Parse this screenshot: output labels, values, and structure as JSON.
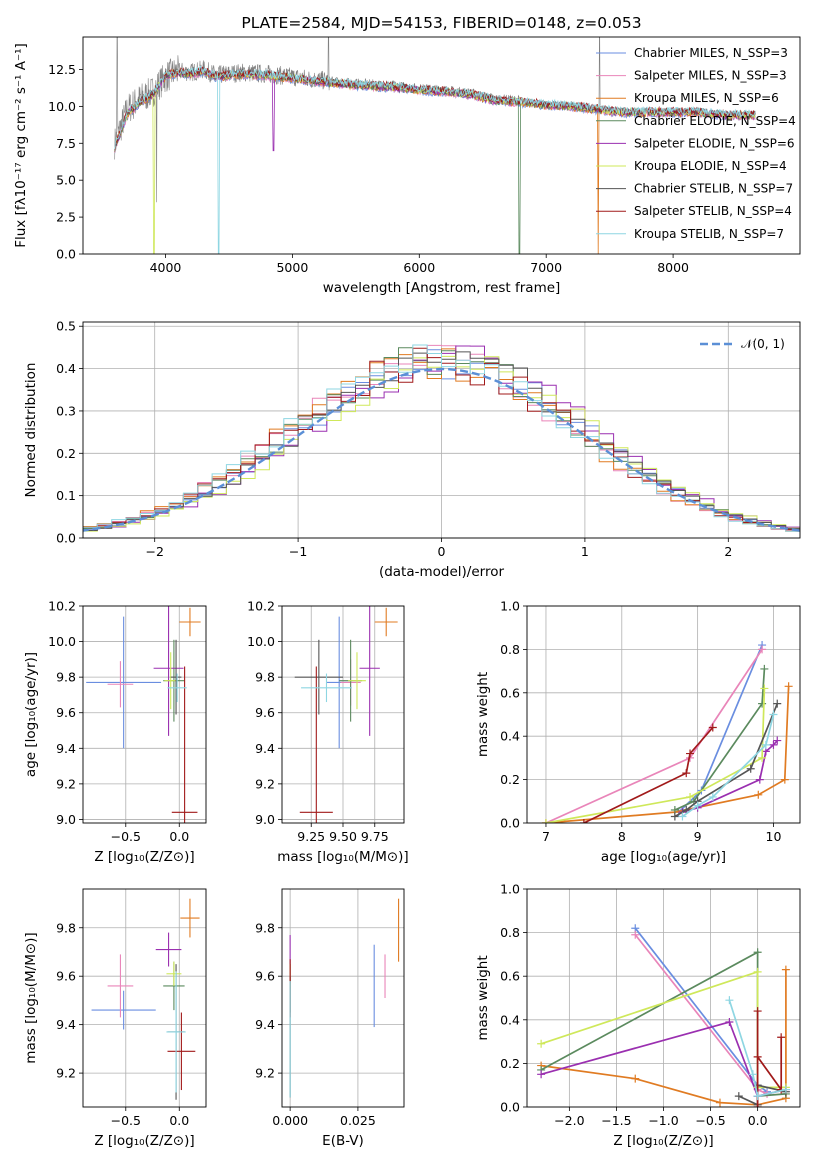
{
  "colors": [
    "#6a8ee0",
    "#e985b9",
    "#e07b22",
    "#5b8a5e",
    "#9a2fb0",
    "#cfe85a",
    "#555555",
    "#a11a1a",
    "#8ed6e2"
  ],
  "chart_data": [
    {
      "id": "spectrum",
      "type": "line",
      "title": "PLATE=2584, MJD=54153, FIBERID=0148, z=0.053",
      "xlabel": "wavelength [Angstrom, rest frame]",
      "ylabel": "Flux [fλ10⁻¹⁷ erg cm⁻² s⁻¹ A⁻¹]",
      "xlim": [
        3350,
        9000
      ],
      "ylim": [
        0,
        14.7
      ],
      "xticks": [
        "4000",
        "5000",
        "6000",
        "7000",
        "8000"
      ],
      "yticks": [
        "0.0",
        "2.5",
        "5.0",
        "7.5",
        "10.0",
        "12.5"
      ],
      "legend": [
        "Chabrier MILES, N_SSP=3",
        "Salpeter MILES, N_SSP=3",
        "Kroupa MILES, N_SSP=6",
        "Chabrier ELODIE, N_SSP=4",
        "Salpeter ELODIE, N_SSP=6",
        "Kroupa ELODIE, N_SSP=4",
        "Chabrier STELIB, N_SSP=7",
        "Salpeter STELIB, N_SSP=4",
        "Kroupa STELIB, N_SSP=7"
      ],
      "data_series": {
        "name": "data",
        "x": [
          3600,
          3700,
          3800,
          3900,
          4000,
          4100,
          4200,
          4300,
          4400,
          4600,
          4800,
          5000,
          5200,
          5400,
          5600,
          5800,
          6000,
          6200,
          6400,
          6600,
          6800,
          7000,
          7200,
          7400,
          7600,
          7800,
          8000,
          8200,
          8400,
          8600
        ],
        "y": [
          7.5,
          9.8,
          10.5,
          11.0,
          12.0,
          12.4,
          12.3,
          12.5,
          12.1,
          12.3,
          12.2,
          12.0,
          11.8,
          11.6,
          11.5,
          11.4,
          11.2,
          11.1,
          10.9,
          10.5,
          10.4,
          10.2,
          10.1,
          9.9,
          9.7,
          9.7,
          9.7,
          9.7,
          9.5,
          9.5
        ]
      },
      "model_series_x": [
        3600,
        3700,
        3800,
        3900,
        4000,
        4100,
        4200,
        4300,
        4400,
        4600,
        4800,
        5000,
        5200,
        5400,
        5600,
        5800,
        6000,
        6200,
        6400,
        6600,
        6800,
        7000,
        7200,
        7400,
        7600,
        7800,
        8000,
        8200,
        8400,
        8600
      ],
      "model_series_y": [
        7.2,
        9.5,
        10.3,
        10.8,
        12.1,
        12.3,
        12.2,
        12.4,
        12.0,
        12.2,
        12.1,
        11.9,
        11.7,
        11.5,
        11.4,
        11.3,
        11.1,
        11.0,
        10.8,
        10.4,
        10.3,
        10.1,
        10.0,
        9.8,
        9.6,
        9.6,
        9.6,
        9.6,
        9.4,
        9.4
      ]
    },
    {
      "id": "residuals",
      "type": "line",
      "xlabel": "(data-model)/error",
      "ylabel": "Normed distribution",
      "xlim": [
        -2.5,
        2.5
      ],
      "ylim": [
        0,
        0.51
      ],
      "xticks": [
        "−2",
        "−1",
        "0",
        "1",
        "2"
      ],
      "yticks": [
        "0.0",
        "0.1",
        "0.2",
        "0.3",
        "0.4",
        "0.5"
      ],
      "legend": [
        "𝒩(0, 1)"
      ]
    },
    {
      "id": "age-vs-z",
      "type": "scatter",
      "xlabel": "Z [log₁₀(Z/Z⊙)]",
      "ylabel": "age  [log₁₀(age/yr)]",
      "xlim": [
        -0.9,
        0.25
      ],
      "ylim": [
        8.98,
        10.2
      ],
      "xticks": [
        "−0.5",
        "0.0"
      ],
      "yticks": [
        "9.0",
        "9.2",
        "9.4",
        "9.6",
        "9.8",
        "10.0",
        "10.2"
      ],
      "points": [
        {
          "x": -0.52,
          "y": 9.77,
          "xerr": 0.35,
          "yerr": 0.37
        },
        {
          "x": -0.55,
          "y": 9.76,
          "xerr": 0.12,
          "yerr": 0.13
        },
        {
          "x": 0.1,
          "y": 10.11,
          "xerr": 0.1,
          "yerr": 0.08
        },
        {
          "x": -0.05,
          "y": 9.78,
          "xerr": 0.1,
          "yerr": 0.23
        },
        {
          "x": -0.1,
          "y": 9.85,
          "xerr": 0.14,
          "yerr": 0.38
        },
        {
          "x": -0.08,
          "y": 9.78,
          "xerr": 0.06,
          "yerr": 0.16
        },
        {
          "x": -0.03,
          "y": 9.8,
          "xerr": 0.05,
          "yerr": 0.21
        },
        {
          "x": 0.05,
          "y": 9.04,
          "xerr": 0.12,
          "yerr": 0.82
        },
        {
          "x": -0.02,
          "y": 9.74,
          "xerr": 0.09,
          "yerr": 0.08
        }
      ]
    },
    {
      "id": "age-vs-mass",
      "type": "scatter",
      "xlabel": "mass [log₁₀(M/M⊙)]",
      "ylabel": "",
      "xlim": [
        9.02,
        9.98
      ],
      "ylim": [
        8.98,
        10.2
      ],
      "xticks": [
        "9.25",
        "9.50",
        "9.75"
      ],
      "yticks": [
        "9.0",
        "9.2",
        "9.4",
        "9.6",
        "9.8",
        "10.0",
        "10.2"
      ],
      "points": [
        {
          "x": 9.47,
          "y": 9.77,
          "xerr": 0.1,
          "yerr": 0.37
        },
        {
          "x": 9.56,
          "y": 9.77,
          "xerr": 0.08,
          "yerr": 0.13
        },
        {
          "x": 9.84,
          "y": 10.11,
          "xerr": 0.09,
          "yerr": 0.08
        },
        {
          "x": 9.56,
          "y": 9.78,
          "xerr": 0.09,
          "yerr": 0.23
        },
        {
          "x": 9.71,
          "y": 9.85,
          "xerr": 0.08,
          "yerr": 0.38
        },
        {
          "x": 9.61,
          "y": 9.78,
          "xerr": 0.07,
          "yerr": 0.16
        },
        {
          "x": 9.31,
          "y": 9.8,
          "xerr": 0.19,
          "yerr": 0.21
        },
        {
          "x": 9.29,
          "y": 9.04,
          "xerr": 0.13,
          "yerr": 0.82
        },
        {
          "x": 9.37,
          "y": 9.74,
          "xerr": 0.2,
          "yerr": 0.08
        }
      ]
    },
    {
      "id": "weight-vs-age",
      "type": "line",
      "xlabel": "age  [log₁₀(age/yr)]",
      "ylabel": "mass weight",
      "xlim": [
        6.75,
        10.35
      ],
      "ylim": [
        0,
        1.0
      ],
      "xticks": [
        "7",
        "8",
        "9",
        "10"
      ],
      "yticks": [
        "0.0",
        "0.2",
        "0.4",
        "0.6",
        "0.8",
        "1.0"
      ],
      "series": [
        {
          "x": [
            8.75,
            9.05,
            9.85
          ],
          "y": [
            0.05,
            0.15,
            0.82
          ]
        },
        {
          "x": [
            7.0,
            8.9,
            9.85
          ],
          "y": [
            0.0,
            0.3,
            0.8
          ]
        },
        {
          "x": [
            7.0,
            8.7,
            9.8,
            10.15,
            10.2
          ],
          "y": [
            0.0,
            0.05,
            0.13,
            0.2,
            0.63
          ]
        },
        {
          "x": [
            8.7,
            8.95,
            9.85,
            9.88
          ],
          "y": [
            0.06,
            0.1,
            0.55,
            0.71
          ]
        },
        {
          "x": [
            8.8,
            9.0,
            9.82,
            9.9,
            10.0,
            10.05
          ],
          "y": [
            0.05,
            0.07,
            0.2,
            0.33,
            0.36,
            0.38
          ]
        },
        {
          "x": [
            7.0,
            8.9,
            9.85,
            9.88
          ],
          "y": [
            0.0,
            0.12,
            0.3,
            0.62
          ]
        },
        {
          "x": [
            8.7,
            8.85,
            9.0,
            9.7,
            10.05
          ],
          "y": [
            0.03,
            0.06,
            0.1,
            0.25,
            0.55
          ]
        },
        {
          "x": [
            7.5,
            8.85,
            8.9,
            9.2
          ],
          "y": [
            0.0,
            0.23,
            0.32,
            0.44
          ]
        },
        {
          "x": [
            8.8,
            9.0,
            9.2,
            9.9,
            10.0
          ],
          "y": [
            0.03,
            0.08,
            0.12,
            0.36,
            0.5
          ]
        }
      ]
    },
    {
      "id": "mass-vs-z",
      "type": "scatter",
      "xlabel": "Z [log₁₀(Z/Z⊙)]",
      "ylabel": "mass [log₁₀(M/M⊙)]",
      "xlim": [
        -0.9,
        0.25
      ],
      "ylim": [
        9.06,
        9.96
      ],
      "xticks": [
        "−0.5",
        "0.0"
      ],
      "yticks": [
        "9.2",
        "9.4",
        "9.6",
        "9.8"
      ],
      "points": [
        {
          "x": -0.52,
          "y": 9.46,
          "xerr": 0.3,
          "yerr": 0.08
        },
        {
          "x": -0.55,
          "y": 9.56,
          "xerr": 0.12,
          "yerr": 0.13
        },
        {
          "x": 0.1,
          "y": 9.84,
          "xerr": 0.09,
          "yerr": 0.08
        },
        {
          "x": -0.05,
          "y": 9.56,
          "xerr": 0.1,
          "yerr": 0.1
        },
        {
          "x": -0.1,
          "y": 9.71,
          "xerr": 0.12,
          "yerr": 0.07
        },
        {
          "x": -0.05,
          "y": 9.61,
          "xerr": 0.07,
          "yerr": 0.05
        },
        {
          "x": -0.03,
          "y": 9.37,
          "xerr": 0.08,
          "yerr": 0.28
        },
        {
          "x": 0.02,
          "y": 9.29,
          "xerr": 0.13,
          "yerr": 0.16
        },
        {
          "x": -0.03,
          "y": 9.37,
          "xerr": 0.09,
          "yerr": 0.25
        }
      ]
    },
    {
      "id": "mass-vs-ebv",
      "type": "scatter",
      "xlabel": "E(B-V)",
      "ylabel": "",
      "xlim": [
        -0.003,
        0.042
      ],
      "ylim": [
        9.06,
        9.96
      ],
      "xticks": [
        "0.000",
        "0.025"
      ],
      "yticks": [
        "9.2",
        "9.4",
        "9.6",
        "9.8"
      ],
      "points": [
        {
          "x": 0.031,
          "y": 9.56,
          "yerr": 0.17
        },
        {
          "x": 0.035,
          "y": 9.6,
          "yerr": 0.09
        },
        {
          "x": 0.04,
          "y": 9.79,
          "yerr": 0.13
        },
        {
          "x": 0.0,
          "y": 9.55,
          "yerr": 0.1
        },
        {
          "x": 0.0,
          "y": 9.67,
          "yerr": 0.1
        },
        {
          "x": 0.0,
          "y": 9.6,
          "yerr": 0.05
        },
        {
          "x": 0.0,
          "y": 9.35,
          "yerr": 0.25
        },
        {
          "x": 0.0,
          "y": 9.55,
          "yerr": 0.12
        },
        {
          "x": 0.0,
          "y": 9.34,
          "yerr": 0.24
        }
      ]
    },
    {
      "id": "weight-vs-z",
      "type": "line",
      "xlabel": "Z [log₁₀(Z/Z⊙)]",
      "ylabel": "mass weight",
      "xlim": [
        -2.45,
        0.45
      ],
      "ylim": [
        0,
        1.0
      ],
      "xticks": [
        "−2.0",
        "−1.5",
        "−1.0",
        "−0.5",
        "0.0"
      ],
      "yticks": [
        "0.0",
        "0.2",
        "0.4",
        "0.6",
        "0.8",
        "1.0"
      ],
      "series": [
        {
          "x": [
            -1.3,
            0.0,
            0.1
          ],
          "y": [
            0.82,
            0.1,
            0.07
          ]
        },
        {
          "x": [
            -1.3,
            0.0,
            0.1
          ],
          "y": [
            0.79,
            0.08,
            0.06
          ]
        },
        {
          "x": [
            -2.3,
            -1.3,
            -0.4,
            0.0,
            0.3,
            0.3
          ],
          "y": [
            0.19,
            0.13,
            0.02,
            0.01,
            0.04,
            0.63
          ]
        },
        {
          "x": [
            -2.3,
            0.0,
            0.0,
            0.3
          ],
          "y": [
            0.17,
            0.71,
            0.05,
            0.06
          ]
        },
        {
          "x": [
            -2.3,
            -0.3,
            0.0,
            0.3
          ],
          "y": [
            0.15,
            0.39,
            0.05,
            0.08
          ]
        },
        {
          "x": [
            -2.3,
            0.0,
            0.0,
            0.3
          ],
          "y": [
            0.29,
            0.62,
            0.09,
            0.09
          ]
        },
        {
          "x": [
            -0.2,
            0.0,
            0.0,
            0.3
          ],
          "y": [
            0.05,
            0.01,
            0.1,
            0.07
          ]
        },
        {
          "x": [
            0.0,
            0.0,
            0.0,
            0.25,
            0.25
          ],
          "y": [
            0.0,
            0.44,
            0.23,
            0.08,
            0.32
          ]
        },
        {
          "x": [
            -0.3,
            -0.05,
            0.0,
            0.3
          ],
          "y": [
            0.49,
            0.15,
            0.05,
            0.08
          ]
        }
      ]
    }
  ]
}
